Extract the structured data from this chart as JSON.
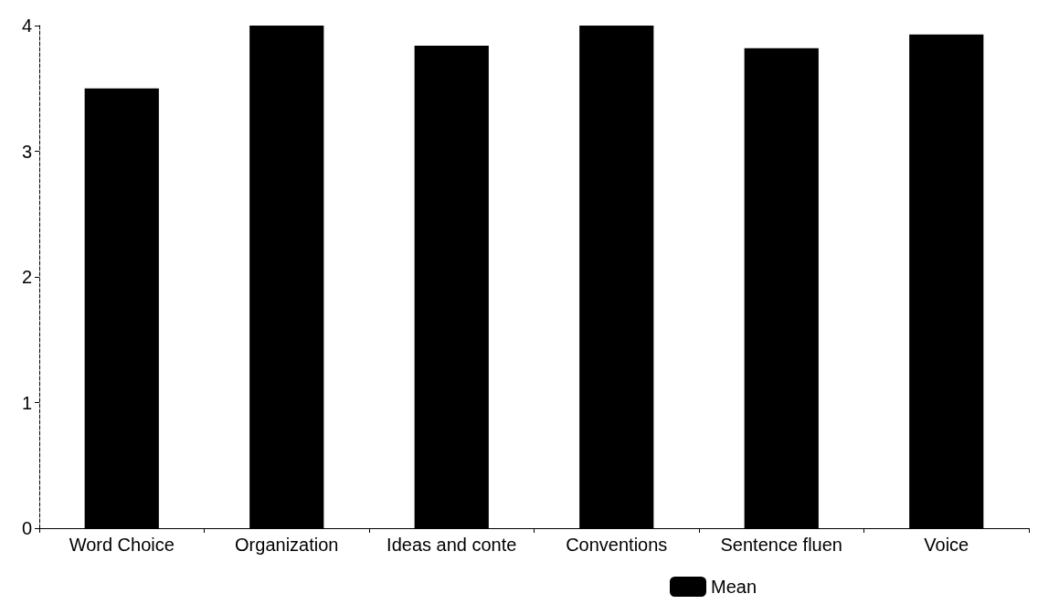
{
  "chart_data": {
    "type": "bar",
    "categories": [
      "Word Choice",
      "Organization",
      "Ideas and conte",
      "Conventions",
      "Sentence fluen",
      "Voice"
    ],
    "series": [
      {
        "name": "Mean",
        "color": "#000000",
        "values": [
          3.5,
          4.0,
          3.84,
          4.0,
          3.82,
          3.93
        ]
      }
    ],
    "ylim": [
      0,
      4
    ],
    "yticks": [
      0,
      1,
      2,
      3,
      4
    ],
    "grid": false,
    "legend": "bottom"
  }
}
